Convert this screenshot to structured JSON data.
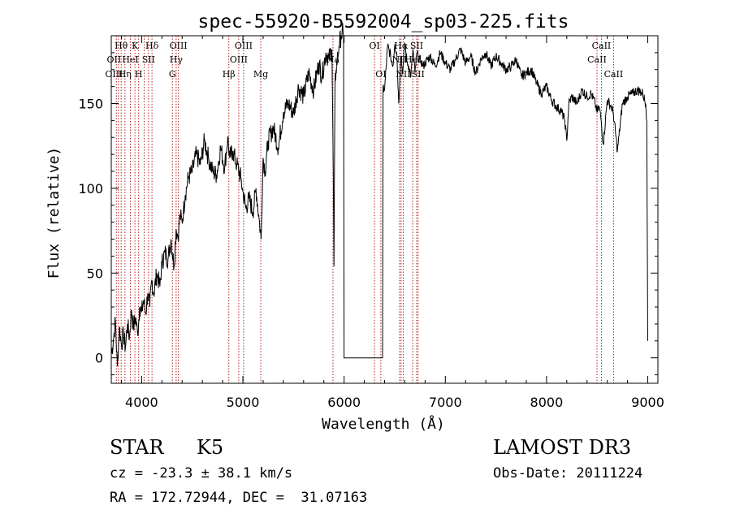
{
  "chart_data": {
    "type": "line",
    "title": "spec-55920-B5592004_sp03-225.fits",
    "xlabel": "Wavelength (Å)",
    "ylabel": "Flux (relative)",
    "xlim": [
      3700,
      9100
    ],
    "ylim": [
      -15,
      190
    ],
    "xticks": [
      4000,
      5000,
      6000,
      7000,
      8000,
      9000
    ],
    "yticks": [
      0,
      50,
      100,
      150
    ],
    "series": [
      {
        "name": "spectrum",
        "x": [
          3700,
          3720,
          3740,
          3760,
          3780,
          3800,
          3820,
          3840,
          3860,
          3880,
          3900,
          3920,
          3940,
          3960,
          3980,
          4000,
          4020,
          4040,
          4060,
          4080,
          4100,
          4120,
          4150,
          4180,
          4200,
          4230,
          4260,
          4290,
          4320,
          4340,
          4360,
          4380,
          4400,
          4430,
          4460,
          4500,
          4540,
          4580,
          4620,
          4660,
          4700,
          4740,
          4780,
          4820,
          4850,
          4870,
          4900,
          4940,
          4980,
          5000,
          5030,
          5060,
          5100,
          5130,
          5160,
          5180,
          5200,
          5220,
          5250,
          5300,
          5350,
          5400,
          5450,
          5500,
          5550,
          5600,
          5650,
          5700,
          5750,
          5780,
          5820,
          5850,
          5880,
          5890,
          5900,
          5910,
          5920,
          5950,
          5970,
          5990,
          5995,
          6000,
          6380,
          6385,
          6400,
          6430,
          6460,
          6480,
          6500,
          6520,
          6540,
          6560,
          6580,
          6600,
          6620,
          6640,
          6660,
          6680,
          6700,
          6720,
          6740,
          6760,
          6780,
          6800,
          6850,
          6900,
          6950,
          7000,
          7050,
          7100,
          7150,
          7200,
          7250,
          7300,
          7350,
          7400,
          7450,
          7500,
          7550,
          7600,
          7650,
          7700,
          7750,
          7800,
          7850,
          7900,
          7950,
          8000,
          8050,
          8100,
          8150,
          8180,
          8200,
          8220,
          8250,
          8300,
          8350,
          8400,
          8440,
          8480,
          8500,
          8520,
          8540,
          8560,
          8600,
          8640,
          8660,
          8700,
          8750,
          8800,
          8850,
          8900,
          8950,
          8980,
          8990,
          9000
        ],
        "y": [
          2,
          10,
          22,
          -5,
          18,
          8,
          14,
          6,
          20,
          12,
          28,
          18,
          24,
          14,
          30,
          27,
          34,
          26,
          38,
          30,
          46,
          38,
          50,
          42,
          56,
          62,
          58,
          70,
          54,
          76,
          72,
          84,
          80,
          96,
          106,
          110,
          120,
          114,
          128,
          118,
          110,
          108,
          124,
          112,
          130,
          118,
          122,
          114,
          106,
          98,
          88,
          94,
          86,
          100,
          82,
          70,
          118,
          110,
          128,
          136,
          124,
          145,
          150,
          144,
          160,
          154,
          168,
          158,
          174,
          166,
          180,
          176,
          182,
          130,
          54,
          160,
          170,
          184,
          190,
          192,
          190,
          0,
          0,
          160,
          158,
          184,
          178,
          172,
          185,
          180,
          150,
          178,
          168,
          186,
          175,
          172,
          166,
          182,
          168,
          180,
          176,
          175,
          172,
          174,
          178,
          172,
          180,
          174,
          170,
          176,
          182,
          174,
          178,
          168,
          176,
          180,
          172,
          178,
          174,
          170,
          172,
          176,
          166,
          168,
          170,
          162,
          156,
          160,
          152,
          148,
          145,
          140,
          128,
          150,
          154,
          150,
          158,
          154,
          156,
          150,
          145,
          148,
          140,
          126,
          152,
          148,
          144,
          122,
          150,
          154,
          156,
          158,
          156,
          150,
          140,
          10
        ]
      }
    ],
    "lines_x": [
      3750,
      3770,
      3798,
      3835,
      3889,
      3934,
      3970,
      4026,
      4068,
      4102,
      4304,
      4341,
      4363,
      4861,
      4959,
      5007,
      5177,
      5890,
      6300,
      6363,
      6548,
      6563,
      6584,
      6678,
      6717,
      6731,
      8498,
      8542,
      8662
    ],
    "line_labels": [
      {
        "text": "Hθ",
        "x": 3798,
        "row": 0
      },
      {
        "text": "K",
        "x": 3934,
        "row": 0
      },
      {
        "text": "Hδ",
        "x": 4102,
        "row": 0
      },
      {
        "text": "OIII",
        "x": 4363,
        "row": 0
      },
      {
        "text": "OIII",
        "x": 5007,
        "row": 0
      },
      {
        "text": "OI",
        "x": 6300,
        "row": 0
      },
      {
        "text": "Hα",
        "x": 6563,
        "row": 0
      },
      {
        "text": "SII",
        "x": 6717,
        "row": 0
      },
      {
        "text": "CaII",
        "x": 8542,
        "row": 0
      },
      {
        "text": "OII",
        "x": 3727,
        "row": 1
      },
      {
        "text": "HeI",
        "x": 3889,
        "row": 1
      },
      {
        "text": "SII",
        "x": 4068,
        "row": 1
      },
      {
        "text": "Hγ",
        "x": 4341,
        "row": 1
      },
      {
        "text": "OIII",
        "x": 4959,
        "row": 1
      },
      {
        "text": "NII",
        "x": 6548,
        "row": 1
      },
      {
        "text": "HeI",
        "x": 6678,
        "row": 1
      },
      {
        "text": "CaII",
        "x": 8498,
        "row": 1
      },
      {
        "text": "OIII",
        "x": 3727,
        "row": 2
      },
      {
        "text": "Hη",
        "x": 3835,
        "row": 2
      },
      {
        "text": "H",
        "x": 3970,
        "row": 2
      },
      {
        "text": "G",
        "x": 4304,
        "row": 2
      },
      {
        "text": "Hβ",
        "x": 4861,
        "row": 2
      },
      {
        "text": "Mg",
        "x": 5177,
        "row": 2
      },
      {
        "text": "Na",
        "x": 5890,
        "row": 1
      },
      {
        "text": "OI",
        "x": 6363,
        "row": 2
      },
      {
        "text": "NII",
        "x": 6584,
        "row": 2
      },
      {
        "text": "SII",
        "x": 6731,
        "row": 2
      },
      {
        "text": "CaII",
        "x": 8662,
        "row": 2
      }
    ]
  },
  "info": {
    "obj_type": "STAR",
    "obj_class": "K5",
    "survey": "LAMOST DR3",
    "redshift": "cz = -23.3 ± 38.1 km/s",
    "obsdate": "Obs-Date: 20111224",
    "coords": "RA = 172.72944, DEC =  31.07163"
  },
  "colors": {
    "line": "#b22222",
    "axis": "#000000"
  }
}
